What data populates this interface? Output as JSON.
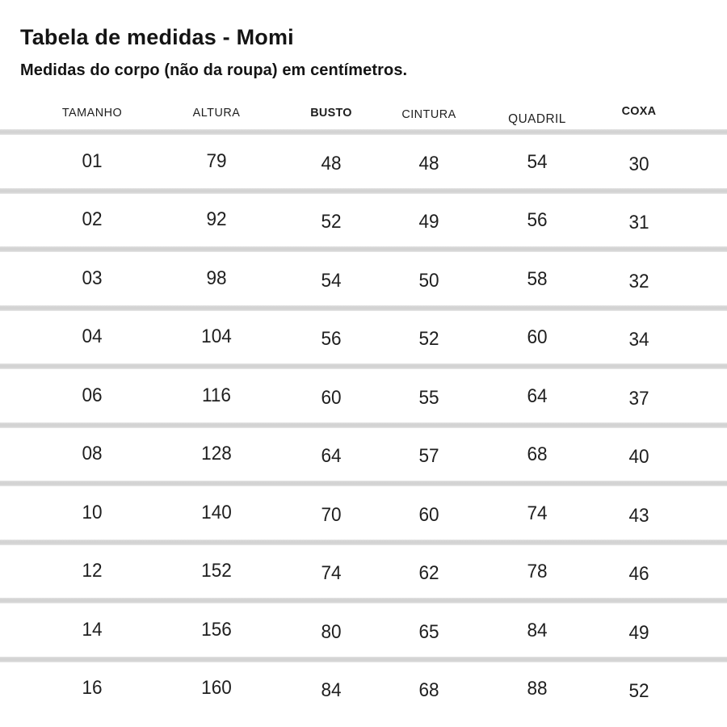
{
  "page": {
    "title": "Tabela de medidas - Momi",
    "subtitle": "Medidas do corpo (não da roupa) em centímetros."
  },
  "table": {
    "columns": [
      {
        "key": "tamanho",
        "label": "TAMANHO",
        "bold": false
      },
      {
        "key": "altura",
        "label": "ALTURA",
        "bold": false
      },
      {
        "key": "busto",
        "label": "BUSTO",
        "bold": true
      },
      {
        "key": "cintura",
        "label": "CINTURA",
        "bold": false
      },
      {
        "key": "quadril",
        "label": "QUADRIL",
        "bold": false
      },
      {
        "key": "coxa",
        "label": "COXA",
        "bold": true
      }
    ],
    "rows": [
      {
        "tamanho": "01",
        "altura": "79",
        "busto": "48",
        "cintura": "48",
        "quadril": "54",
        "coxa": "30"
      },
      {
        "tamanho": "02",
        "altura": "92",
        "busto": "52",
        "cintura": "49",
        "quadril": "56",
        "coxa": "31"
      },
      {
        "tamanho": "03",
        "altura": "98",
        "busto": "54",
        "cintura": "50",
        "quadril": "58",
        "coxa": "32"
      },
      {
        "tamanho": "04",
        "altura": "104",
        "busto": "56",
        "cintura": "52",
        "quadril": "60",
        "coxa": "34"
      },
      {
        "tamanho": "06",
        "altura": "116",
        "busto": "60",
        "cintura": "55",
        "quadril": "64",
        "coxa": "37"
      },
      {
        "tamanho": "08",
        "altura": "128",
        "busto": "64",
        "cintura": "57",
        "quadril": "68",
        "coxa": "40"
      },
      {
        "tamanho": "10",
        "altura": "140",
        "busto": "70",
        "cintura": "60",
        "quadril": "74",
        "coxa": "43"
      },
      {
        "tamanho": "12",
        "altura": "152",
        "busto": "74",
        "cintura": "62",
        "quadril": "78",
        "coxa": "46"
      },
      {
        "tamanho": "14",
        "altura": "156",
        "busto": "80",
        "cintura": "65",
        "quadril": "84",
        "coxa": "49"
      },
      {
        "tamanho": "16",
        "altura": "160",
        "busto": "84",
        "cintura": "68",
        "quadril": "88",
        "coxa": "52"
      }
    ]
  },
  "colors": {
    "background": "#ffffff",
    "text": "#1e1e1e",
    "divider": "#d6d6d6"
  }
}
